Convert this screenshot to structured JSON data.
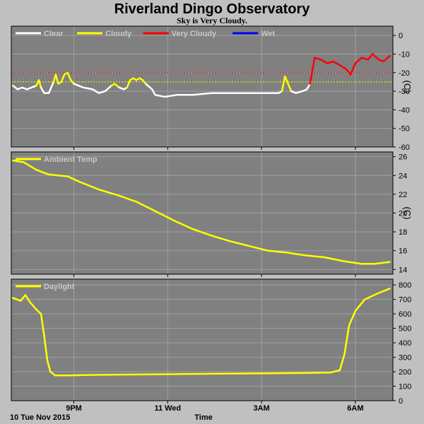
{
  "title": "Riverland Dingo Observatory",
  "subtitle": "Sky is Very Cloudy.",
  "date_label": "10 Tue Nov 2015",
  "xlabel": "Time",
  "colors": {
    "background": "#c0c0c0",
    "plot_bg": "#808080",
    "grid": "#a0a0a0",
    "clear": "#ffffff",
    "cloudy": "#ffff00",
    "very_cloudy": "#ff0000",
    "wet": "#0000ff",
    "threshold_red": "#ff0000",
    "threshold_yellow": "#ffff00",
    "legend_text": "#c8c8c8"
  },
  "chart_data": [
    {
      "type": "line",
      "name": "sky",
      "unit": "(C)",
      "legend": [
        {
          "label": "Clear",
          "color": "#ffffff"
        },
        {
          "label": "Cloudy",
          "color": "#ffff00"
        },
        {
          "label": "Very Cloudy",
          "color": "#ff0000"
        },
        {
          "label": "Wet",
          "color": "#0000ff"
        }
      ],
      "ylim": [
        -60,
        5
      ],
      "yticks": [
        "0",
        "-10",
        "-20",
        "-30",
        "-40",
        "-50",
        "-60"
      ],
      "xlim": [
        19.0,
        31.2
      ],
      "xticks": [
        {
          "x": 21,
          "label": "9PM"
        },
        {
          "x": 24,
          "label": "11 Wed"
        },
        {
          "x": 27,
          "label": "3AM"
        },
        {
          "x": 30,
          "label": "6AM"
        }
      ],
      "thresholds": [
        {
          "y": -20,
          "color": "#ff0000"
        },
        {
          "y": -25,
          "color": "#ffff00"
        }
      ],
      "series": [
        {
          "category": "Clear",
          "color": "#ffffff",
          "points": [
            [
              19.05,
              -27
            ],
            [
              19.2,
              -29
            ],
            [
              19.35,
              -28
            ],
            [
              19.5,
              -29
            ],
            [
              19.65,
              -28
            ],
            [
              19.8,
              -27
            ]
          ]
        },
        {
          "category": "Cloudy",
          "color": "#ffff00",
          "points": [
            [
              19.8,
              -27
            ],
            [
              19.88,
              -24
            ],
            [
              19.95,
              -28
            ]
          ]
        },
        {
          "category": "Clear",
          "color": "#ffffff",
          "points": [
            [
              19.95,
              -28
            ],
            [
              20.05,
              -31
            ],
            [
              20.2,
              -31
            ],
            [
              20.3,
              -27
            ],
            [
              20.35,
              -25
            ]
          ]
        },
        {
          "category": "Cloudy",
          "color": "#ffff00",
          "points": [
            [
              20.35,
              -25
            ],
            [
              20.42,
              -21
            ],
            [
              20.5,
              -26
            ],
            [
              20.6,
              -25
            ],
            [
              20.7,
              -21
            ],
            [
              20.8,
              -20
            ],
            [
              20.9,
              -24
            ],
            [
              21.0,
              -26
            ]
          ]
        },
        {
          "category": "Clear",
          "color": "#ffffff",
          "points": [
            [
              21.0,
              -26
            ],
            [
              21.3,
              -28
            ],
            [
              21.6,
              -29
            ],
            [
              21.8,
              -31
            ],
            [
              22.0,
              -30
            ],
            [
              22.2,
              -27
            ]
          ]
        },
        {
          "category": "Cloudy",
          "color": "#ffff00",
          "points": [
            [
              22.2,
              -27
            ],
            [
              22.3,
              -26
            ],
            [
              22.45,
              -28
            ]
          ]
        },
        {
          "category": "Clear",
          "color": "#ffffff",
          "points": [
            [
              22.45,
              -28
            ],
            [
              22.6,
              -29
            ],
            [
              22.7,
              -28
            ]
          ]
        },
        {
          "category": "Cloudy",
          "color": "#ffff00",
          "points": [
            [
              22.7,
              -28
            ],
            [
              22.8,
              -24
            ],
            [
              22.9,
              -23
            ],
            [
              23.0,
              -24
            ],
            [
              23.1,
              -23
            ],
            [
              23.2,
              -24
            ],
            [
              23.3,
              -26
            ]
          ]
        },
        {
          "category": "Clear",
          "color": "#ffffff",
          "points": [
            [
              23.3,
              -26
            ],
            [
              23.5,
              -29
            ],
            [
              23.6,
              -32
            ],
            [
              23.9,
              -33
            ],
            [
              24.3,
              -32
            ],
            [
              24.8,
              -32
            ],
            [
              25.4,
              -31
            ],
            [
              26.0,
              -31
            ],
            [
              26.6,
              -31
            ],
            [
              27.0,
              -31
            ],
            [
              27.55,
              -31
            ],
            [
              27.65,
              -30
            ]
          ]
        },
        {
          "category": "Cloudy",
          "color": "#ffff00",
          "points": [
            [
              27.65,
              -30
            ],
            [
              27.75,
              -22
            ],
            [
              27.85,
              -26
            ],
            [
              27.95,
              -30
            ]
          ]
        },
        {
          "category": "Clear",
          "color": "#ffffff",
          "points": [
            [
              27.95,
              -30
            ],
            [
              28.1,
              -31
            ],
            [
              28.3,
              -30
            ],
            [
              28.45,
              -29
            ],
            [
              28.55,
              -26
            ]
          ]
        },
        {
          "category": "Very Cloudy",
          "color": "#ff0000",
          "points": [
            [
              28.55,
              -26
            ],
            [
              28.7,
              -12
            ],
            [
              28.9,
              -13
            ],
            [
              29.1,
              -15
            ],
            [
              29.3,
              -14
            ],
            [
              29.5,
              -16
            ],
            [
              29.7,
              -18
            ],
            [
              29.85,
              -21
            ],
            [
              30.0,
              -15
            ],
            [
              30.2,
              -12
            ],
            [
              30.4,
              -13
            ],
            [
              30.55,
              -10
            ],
            [
              30.75,
              -13
            ],
            [
              30.9,
              -14
            ],
            [
              31.1,
              -11
            ]
          ]
        }
      ]
    },
    {
      "type": "line",
      "name": "ambient",
      "unit": "(C)",
      "legend": [
        {
          "label": "Ambient Temp",
          "color": "#ffff00"
        }
      ],
      "ylim": [
        13.5,
        26.5
      ],
      "yticks": [
        "26",
        "24",
        "22",
        "20",
        "18",
        "16",
        "14"
      ],
      "xlim": [
        19.0,
        31.2
      ],
      "xticks": [
        {
          "x": 21,
          "label": "9PM"
        },
        {
          "x": 24,
          "label": "11 Wed"
        },
        {
          "x": 27,
          "label": "3AM"
        },
        {
          "x": 30,
          "label": "6AM"
        }
      ],
      "series": [
        {
          "name": "Ambient Temp",
          "color": "#ffff00",
          "points": [
            [
              19.05,
              25.6
            ],
            [
              19.4,
              25.4
            ],
            [
              19.8,
              24.6
            ],
            [
              20.2,
              24.1
            ],
            [
              20.8,
              23.9
            ],
            [
              21.2,
              23.3
            ],
            [
              21.8,
              22.5
            ],
            [
              22.4,
              21.9
            ],
            [
              23.0,
              21.2
            ],
            [
              23.6,
              20.2
            ],
            [
              24.2,
              19.2
            ],
            [
              24.8,
              18.3
            ],
            [
              25.4,
              17.6
            ],
            [
              26.0,
              17.0
            ],
            [
              26.6,
              16.5
            ],
            [
              27.2,
              16.0
            ],
            [
              27.8,
              15.8
            ],
            [
              28.4,
              15.5
            ],
            [
              29.0,
              15.3
            ],
            [
              29.6,
              14.9
            ],
            [
              30.2,
              14.6
            ],
            [
              30.6,
              14.6
            ],
            [
              31.1,
              14.8
            ]
          ]
        }
      ]
    },
    {
      "type": "line",
      "name": "daylight",
      "unit": "",
      "legend": [
        {
          "label": "Daylight",
          "color": "#ffff00"
        }
      ],
      "ylim": [
        0,
        840
      ],
      "yticks": [
        "800",
        "700",
        "600",
        "500",
        "400",
        "300",
        "200",
        "100",
        "0"
      ],
      "xlim": [
        19.0,
        31.2
      ],
      "xticks": [
        {
          "x": 21,
          "label": "9PM"
        },
        {
          "x": 24,
          "label": "11 Wed"
        },
        {
          "x": 27,
          "label": "3AM"
        },
        {
          "x": 30,
          "label": "6AM"
        }
      ],
      "series": [
        {
          "name": "Daylight",
          "color": "#ffff00",
          "points": [
            [
              19.05,
              710
            ],
            [
              19.3,
              690
            ],
            [
              19.45,
              730
            ],
            [
              19.6,
              680
            ],
            [
              19.8,
              630
            ],
            [
              19.95,
              600
            ],
            [
              20.05,
              450
            ],
            [
              20.15,
              280
            ],
            [
              20.25,
              200
            ],
            [
              20.4,
              175
            ],
            [
              20.8,
              175
            ],
            [
              21.5,
              178
            ],
            [
              22.5,
              180
            ],
            [
              23.5,
              182
            ],
            [
              24.5,
              184
            ],
            [
              25.5,
              186
            ],
            [
              26.5,
              188
            ],
            [
              27.5,
              190
            ],
            [
              28.5,
              192
            ],
            [
              29.2,
              195
            ],
            [
              29.5,
              210
            ],
            [
              29.65,
              320
            ],
            [
              29.8,
              520
            ],
            [
              30.0,
              620
            ],
            [
              30.3,
              700
            ],
            [
              30.7,
              740
            ],
            [
              31.1,
              775
            ]
          ]
        }
      ]
    }
  ]
}
